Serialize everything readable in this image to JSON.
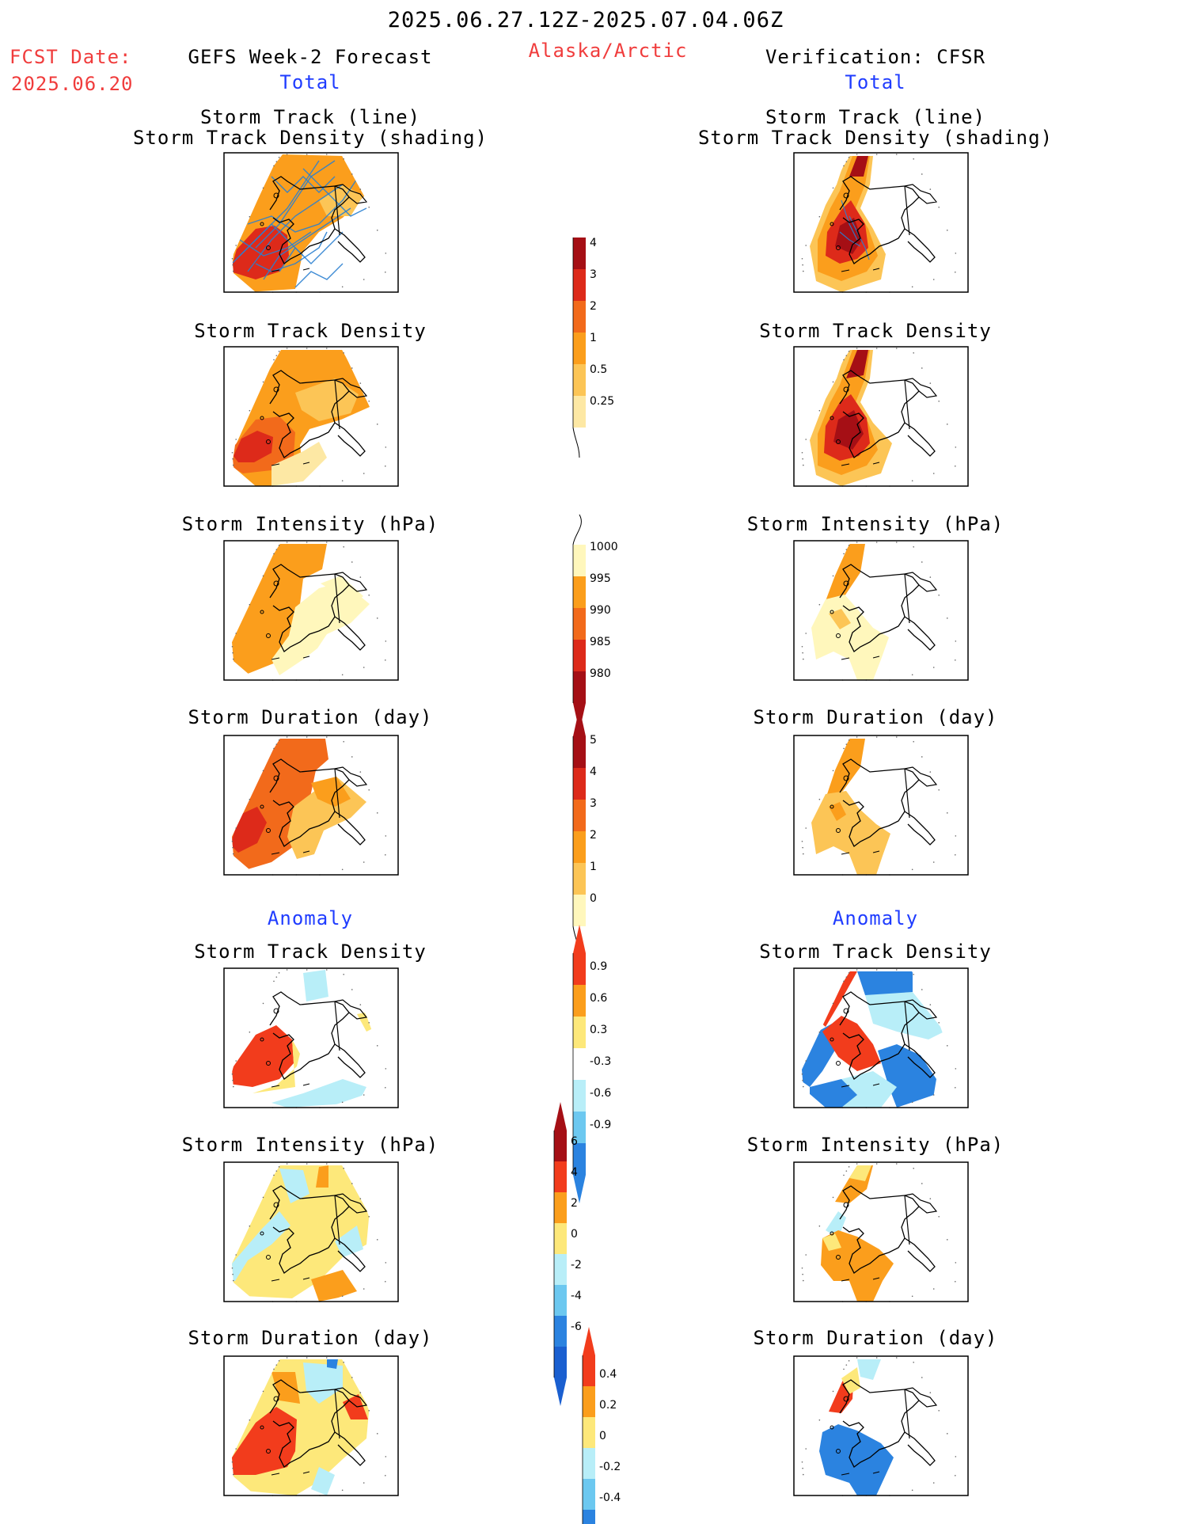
{
  "header": {
    "date_range": "2025.06.27.12Z-2025.07.04.06Z",
    "fcst_label": "FCST Date:",
    "fcst_date": "2025.06.20",
    "left_title": "GEFS Week-2 Forecast",
    "region": "Alaska/Arctic",
    "right_title": "Verification: CFSR"
  },
  "sections": {
    "total": "Total",
    "anomaly": "Anomaly"
  },
  "panel_titles": {
    "track_line": "Storm Track (line)",
    "track_shading": "Storm Track Density (shading)",
    "density": "Storm Track Density",
    "intensity": "Storm Intensity (hPa)",
    "duration": "Storm Duration (day)"
  },
  "colorbars": [
    {
      "id": "density-total",
      "ticks": [
        "4",
        "3",
        "2",
        "1",
        "0.5",
        "0.25"
      ],
      "colors": [
        "#a50f15",
        "#dd2a1a",
        "#f26a1b",
        "#fb9e1c",
        "#fcc556",
        "#fde8a4"
      ]
    },
    {
      "id": "intensity-total",
      "ticks": [
        "1000",
        "995",
        "990",
        "985",
        "980"
      ],
      "colors": [
        "#fff7bc",
        "#fb9e1c",
        "#f26a1b",
        "#dd2a1a",
        "#a50f15"
      ]
    },
    {
      "id": "duration-total",
      "ticks": [
        "5",
        "4",
        "3",
        "2",
        "1",
        "0"
      ],
      "colors": [
        "#a50f15",
        "#dd2a1a",
        "#f26a1b",
        "#fb9e1c",
        "#fcc556",
        "#fff7bc"
      ]
    },
    {
      "id": "density-anom",
      "ticks": [
        "0.9",
        "0.6",
        "0.3",
        "-0.3",
        "-0.6",
        "-0.9"
      ],
      "colors": [
        "#f23c1c",
        "#fb9e1c",
        "#fde87a",
        "#ffffff",
        "#b8eef8",
        "#6cc8f0",
        "#2b83e0"
      ]
    },
    {
      "id": "intensity-anom",
      "ticks": [
        "6",
        "4",
        "2",
        "0",
        "-2",
        "-4",
        "-6"
      ],
      "colors": [
        "#a50f15",
        "#f23c1c",
        "#fb9e1c",
        "#fde87a",
        "#b8eef8",
        "#6cc8f0",
        "#2b83e0",
        "#1a5fd0"
      ]
    },
    {
      "id": "duration-anom",
      "ticks": [
        "0.4",
        "0.2",
        "0",
        "-0.2",
        "-0.4"
      ],
      "colors": [
        "#f23c1c",
        "#fb9e1c",
        "#fde87a",
        "#b8eef8",
        "#6cc8f0",
        "#2b83e0"
      ]
    }
  ]
}
